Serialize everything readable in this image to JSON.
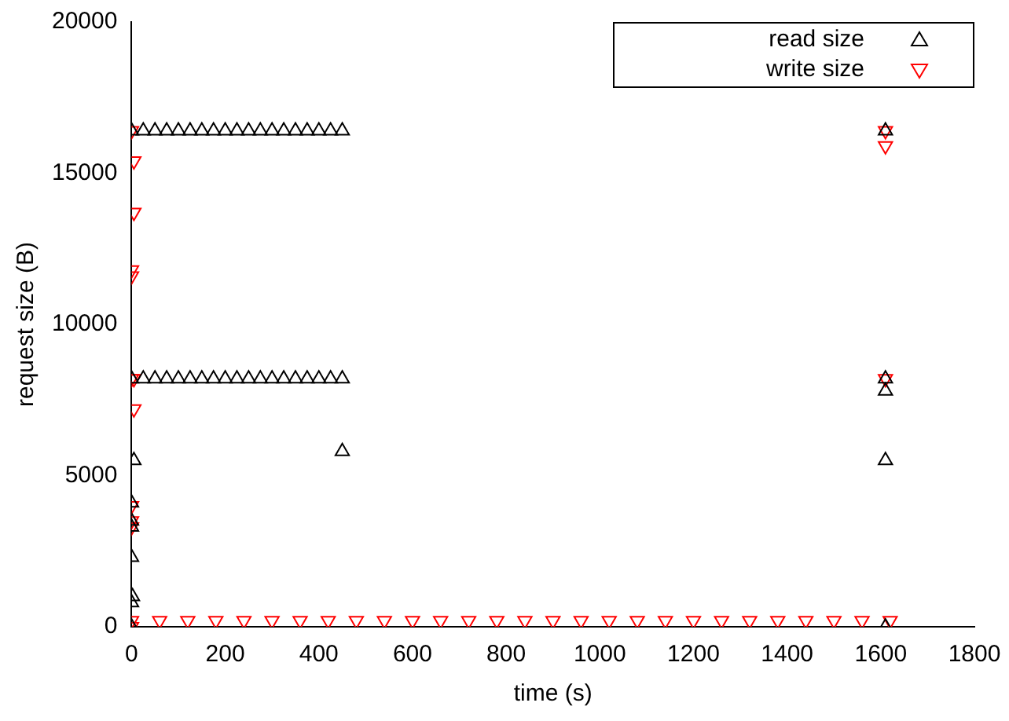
{
  "chart_data": {
    "type": "scatter",
    "xlabel": "time (s)",
    "ylabel": "request size (B)",
    "xlim": [
      0,
      1800
    ],
    "xticks": [
      0,
      200,
      400,
      600,
      800,
      1000,
      1200,
      1400,
      1600,
      1800
    ],
    "ylim": [
      0,
      20000
    ],
    "yticks": [
      0,
      5000,
      10000,
      15000,
      20000
    ],
    "grid": false,
    "legend": "top right",
    "series": [
      {
        "name": "read size",
        "color": "#000000",
        "marker": "triangle",
        "x": [
          0,
          25,
          50,
          75,
          100,
          125,
          150,
          175,
          200,
          225,
          250,
          275,
          300,
          325,
          350,
          375,
          400,
          425,
          450,
          0,
          25,
          50,
          75,
          100,
          125,
          150,
          175,
          200,
          225,
          250,
          275,
          300,
          325,
          350,
          375,
          400,
          425,
          450,
          5,
          450,
          0,
          2,
          0,
          0,
          0,
          0,
          0,
          1610,
          1610,
          1610,
          1610,
          1610
        ],
        "values": [
          16400,
          16400,
          16400,
          16400,
          16400,
          16400,
          16400,
          16400,
          16400,
          16400,
          16400,
          16400,
          16400,
          16400,
          16400,
          16400,
          16400,
          16400,
          16400,
          8200,
          8200,
          8200,
          8200,
          8200,
          8200,
          8200,
          8200,
          8200,
          8200,
          8200,
          8200,
          8200,
          8200,
          8200,
          8200,
          8200,
          8200,
          8200,
          5500,
          5800,
          2300,
          1000,
          800,
          3300,
          3500,
          4100,
          0,
          16400,
          8200,
          7800,
          5500,
          0
        ]
      },
      {
        "name": "write size",
        "color": "#ff0000",
        "marker": "triangle-down",
        "x": [
          0,
          5,
          5,
          0,
          0,
          5,
          0,
          5,
          0,
          0,
          0,
          1610,
          1610,
          1610,
          0,
          60,
          120,
          180,
          240,
          300,
          360,
          420,
          480,
          540,
          600,
          660,
          720,
          780,
          840,
          900,
          960,
          1020,
          1080,
          1140,
          1200,
          1260,
          1320,
          1380,
          1440,
          1500,
          1560,
          1620,
          0
        ],
        "values": [
          16400,
          15400,
          13700,
          11600,
          11800,
          7200,
          8200,
          8200,
          4000,
          3500,
          3300,
          16400,
          15900,
          8200,
          200,
          200,
          200,
          200,
          200,
          200,
          200,
          200,
          200,
          200,
          200,
          200,
          200,
          200,
          200,
          200,
          200,
          200,
          200,
          200,
          200,
          200,
          200,
          200,
          200,
          200,
          200,
          200,
          0
        ]
      }
    ]
  }
}
